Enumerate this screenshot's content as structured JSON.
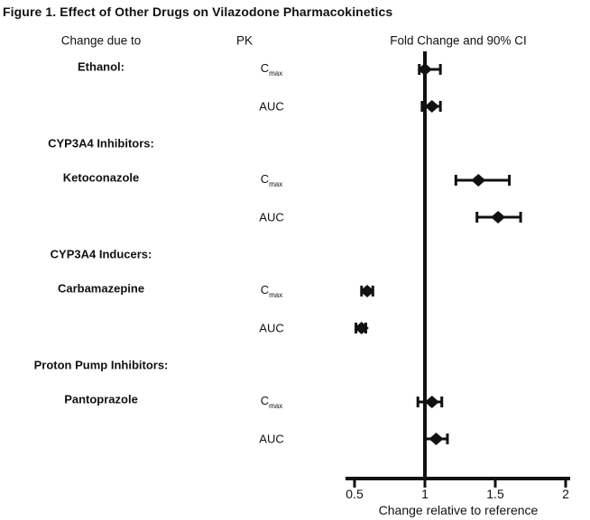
{
  "chart_data": {
    "type": "scatter",
    "variant": "forest-plot",
    "title": "Figure 1. Effect of Other Drugs on Vilazodone Pharmacokinetics",
    "column_headers": {
      "left": "Change due to",
      "pk": "PK",
      "plot": "Fold Change and 90% CI"
    },
    "xlabel": "Change relative to reference",
    "x_ticks": [
      0.5,
      1,
      1.5,
      2
    ],
    "x_range": [
      0.5,
      2
    ],
    "reference_line": 1,
    "grid": false,
    "marker": "diamond",
    "marker_color": "#111111",
    "groups": [
      {
        "header": "",
        "drug": "Ethanol:",
        "rows": [
          {
            "pk": "C_max",
            "estimate": 1.0,
            "ci": [
              0.96,
              1.11
            ]
          },
          {
            "pk": "AUC",
            "estimate": 1.05,
            "ci": [
              0.98,
              1.11
            ]
          }
        ]
      },
      {
        "header": "CYP3A4 Inhibitors:",
        "drug": "Ketoconazole",
        "rows": [
          {
            "pk": "C_max",
            "estimate": 1.38,
            "ci": [
              1.22,
              1.6
            ]
          },
          {
            "pk": "AUC",
            "estimate": 1.52,
            "ci": [
              1.37,
              1.68
            ]
          }
        ]
      },
      {
        "header": "CYP3A4 Inducers:",
        "drug": "Carbamazepine",
        "rows": [
          {
            "pk": "C_max",
            "estimate": 0.59,
            "ci": [
              0.55,
              0.63
            ]
          },
          {
            "pk": "AUC",
            "estimate": 0.55,
            "ci": [
              0.51,
              0.58
            ]
          }
        ]
      },
      {
        "header": "Proton Pump Inhibitors:",
        "drug": "Pantoprazole",
        "rows": [
          {
            "pk": "C_max",
            "estimate": 1.05,
            "ci": [
              0.95,
              1.12
            ]
          },
          {
            "pk": "AUC",
            "estimate": 1.08,
            "ci": [
              1.0,
              1.16
            ]
          }
        ]
      }
    ]
  }
}
